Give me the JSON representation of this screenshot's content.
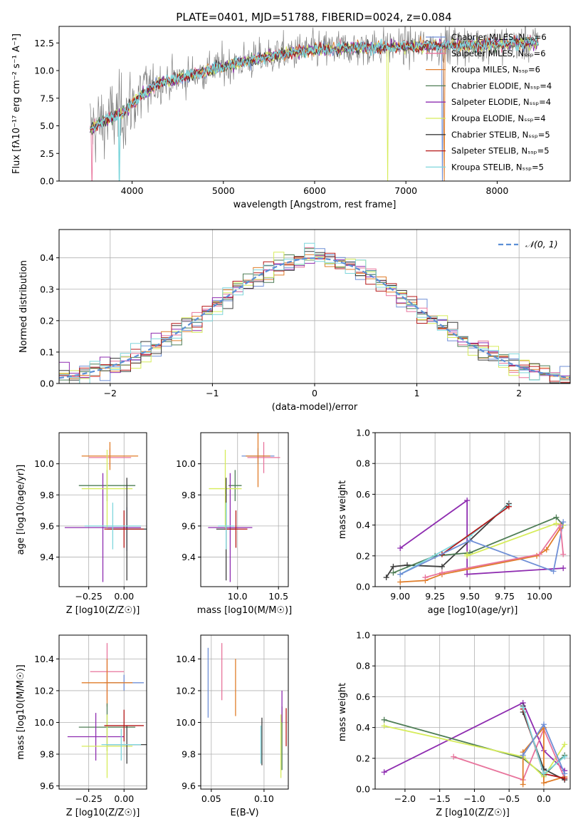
{
  "figure_title": "PLATE=0401, MJD=51788, FIBERID=0024, z=0.084",
  "colors": {
    "chabrier_miles": "#6f8fd6",
    "salpeter_miles": "#e8749c",
    "kroupa_miles": "#e07d2a",
    "chabrier_elodie": "#4e7d55",
    "salpeter_elodie": "#8e2cb0",
    "kroupa_elodie": "#d6ec5a",
    "chabrier_stelib": "#3d3d3d",
    "salpeter_stelib": "#b51818",
    "kroupa_stelib": "#7fd6dc",
    "data": "#808080",
    "normal": "#5b8fd6"
  },
  "chart_data": [
    {
      "id": "spectrum",
      "type": "line",
      "title": "PLATE=0401, MJD=51788, FIBERID=0024, z=0.084",
      "xlabel": "wavelength [Angstrom, rest frame]",
      "ylabel": "Flux [fλ10⁻¹⁷ erg cm⁻² s⁻¹ A⁻¹]",
      "xlim": [
        3200,
        8800
      ],
      "ylim": [
        0,
        14
      ],
      "xticks": [
        4000,
        5000,
        6000,
        7000,
        8000
      ],
      "yticks": [
        0.0,
        2.5,
        5.0,
        7.5,
        10.0,
        12.5
      ],
      "grid": false,
      "legend_position": "top-right",
      "legend": [
        "Chabrier MILES, N_SSP=6",
        "Salpeter MILES, N_SSP=6",
        "Kroupa MILES, N_SSP=6",
        "Chabrier ELODIE, N_SSP=4",
        "Salpeter ELODIE, N_SSP=4",
        "Kroupa ELODIE, N_SSP=4",
        "Chabrier STELIB, N_SSP=5",
        "Salpeter STELIB, N_SSP=5",
        "Kroupa STELIB, N_SSP=5"
      ],
      "continuum": {
        "x": [
          3550,
          3700,
          3900,
          4100,
          4300,
          4600,
          5000,
          5400,
          5800,
          6200,
          6600,
          7000,
          7400,
          7700,
          8000,
          8400
        ],
        "y": [
          4.8,
          5.4,
          6.2,
          7.8,
          8.9,
          9.5,
          10.4,
          11.1,
          11.7,
          12.0,
          12.1,
          12.2,
          12.3,
          12.3,
          12.4,
          12.5
        ]
      },
      "sharp_drops": [
        {
          "model": "kroupa_elodie",
          "x": 6800
        },
        {
          "model": "kroupa_miles",
          "x": 7420
        },
        {
          "model": "chabrier_miles",
          "x": 7400
        },
        {
          "model": "salpeter_miles",
          "x": 3560
        },
        {
          "model": "kroupa_stelib",
          "x": 3860
        }
      ]
    },
    {
      "id": "residuals",
      "type": "histogram",
      "xlabel": "(data-model)/error",
      "ylabel": "Normed distribution",
      "xlim": [
        -2.5,
        2.5
      ],
      "ylim": [
        0,
        0.49
      ],
      "xticks": [
        -2,
        -1,
        0,
        1,
        2
      ],
      "yticks": [
        0.0,
        0.1,
        0.2,
        0.3,
        0.4
      ],
      "grid": true,
      "legend_position": "top-right",
      "legend": [
        "𝒩(0, 1)"
      ],
      "bin_width": 0.1,
      "bin_start": -2.5,
      "reference_curve": "normal(0,1)"
    },
    {
      "id": "age_vs_Z",
      "type": "scatter",
      "xlabel": "Z [log10(Z/Z☉)]",
      "ylabel": "age  [log10(age/yr)]",
      "xlim": [
        -0.46,
        0.16
      ],
      "ylim": [
        9.21,
        10.2
      ],
      "xticks": [
        -0.25,
        0.0
      ],
      "yticks": [
        9.4,
        9.6,
        9.8,
        10.0
      ],
      "grid": true,
      "points": [
        {
          "model": "chabrier_miles",
          "x": 0.02,
          "xerr": 0.13,
          "y": 9.58,
          "yerr": 0.14
        },
        {
          "model": "salpeter_miles",
          "x": -0.1,
          "xerr": 0.15,
          "y": 10.04,
          "yerr": 0.06
        },
        {
          "model": "kroupa_miles",
          "x": -0.1,
          "xerr": 0.2,
          "y": 10.05,
          "yerr": 0.09
        },
        {
          "model": "chabrier_elodie",
          "x": -0.12,
          "xerr": 0.2,
          "y": 9.86,
          "yerr": 0.1
        },
        {
          "model": "salpeter_elodie",
          "x": -0.15,
          "xerr": 0.27,
          "y": 9.59,
          "yerr": 0.35
        },
        {
          "model": "kroupa_elodie",
          "x": -0.12,
          "xerr": 0.18,
          "y": 9.84,
          "yerr": 0.25
        },
        {
          "model": "chabrier_stelib",
          "x": 0.02,
          "xerr": 0.14,
          "y": 9.58,
          "yerr": 0.33
        },
        {
          "model": "salpeter_stelib",
          "x": 0.0,
          "xerr": 0.14,
          "y": 9.58,
          "yerr": 0.12
        },
        {
          "model": "kroupa_stelib",
          "x": -0.08,
          "xerr": 0.2,
          "y": 9.6,
          "yerr": 0.15
        }
      ]
    },
    {
      "id": "age_vs_mass",
      "type": "scatter",
      "xlabel": "mass [log10(M/M☉)]",
      "ylabel": "",
      "xlim": [
        9.55,
        10.62
      ],
      "ylim": [
        9.21,
        10.2
      ],
      "xticks": [
        9.0,
        10.0,
        10.5
      ],
      "xtick_labels": [
        "",
        "10.0",
        "10.5"
      ],
      "yticks": [
        9.4,
        9.6,
        9.8,
        10.0
      ],
      "grid": true,
      "points": [
        {
          "model": "chabrier_miles",
          "x": 10.25,
          "xerr": 0.2,
          "y": 10.05,
          "yerr": 0.05
        },
        {
          "model": "salpeter_miles",
          "x": 10.32,
          "xerr": 0.2,
          "y": 10.04,
          "yerr": 0.1
        },
        {
          "model": "kroupa_miles",
          "x": 10.25,
          "xerr": 0.15,
          "y": 10.05,
          "yerr": 0.2
        },
        {
          "model": "chabrier_elodie",
          "x": 9.97,
          "xerr": 0.08,
          "y": 9.86,
          "yerr": 0.1
        },
        {
          "model": "salpeter_elodie",
          "x": 9.91,
          "xerr": 0.27,
          "y": 9.59,
          "yerr": 0.35
        },
        {
          "model": "kroupa_elodie",
          "x": 9.85,
          "xerr": 0.2,
          "y": 9.84,
          "yerr": 0.25
        },
        {
          "model": "chabrier_stelib",
          "x": 9.86,
          "xerr": 0.12,
          "y": 9.58,
          "yerr": 0.33
        },
        {
          "model": "salpeter_stelib",
          "x": 9.98,
          "xerr": 0.14,
          "y": 9.58,
          "yerr": 0.12
        },
        {
          "model": "kroupa_stelib",
          "x": 9.86,
          "xerr": 0.1,
          "y": 9.6,
          "yerr": 0.15
        }
      ]
    },
    {
      "id": "mass_weight_vs_age",
      "type": "line",
      "xlabel": "age  [log10(age/yr)]",
      "ylabel": "mass weight",
      "xlim": [
        8.82,
        10.22
      ],
      "ylim": [
        0,
        1
      ],
      "xticks": [
        9.0,
        9.25,
        9.5,
        9.75,
        10.0
      ],
      "yticks": [
        0.0,
        0.2,
        0.4,
        0.6,
        0.8,
        1.0
      ],
      "grid": true,
      "series": [
        {
          "model": "salpeter_elodie",
          "x": [
            9.0,
            9.48,
            9.48,
            10.17
          ],
          "y": [
            0.25,
            0.56,
            0.08,
            0.12
          ]
        },
        {
          "model": "chabrier_stelib",
          "x": [
            8.9,
            8.95,
            9.05,
            9.3,
            9.78
          ],
          "y": [
            0.06,
            0.13,
            0.14,
            0.13,
            0.54
          ]
        },
        {
          "model": "chabrier_elodie",
          "x": [
            8.95,
            9.25,
            9.5,
            10.12,
            10.17
          ],
          "y": [
            0.09,
            0.2,
            0.22,
            0.45,
            0.4
          ]
        },
        {
          "model": "kroupa_elodie",
          "x": [
            9.48,
            9.48,
            10.12,
            10.17
          ],
          "y": [
            0.21,
            0.2,
            0.41,
            0.4
          ]
        },
        {
          "model": "kroupa_stelib",
          "x": [
            9.0,
            9.5,
            9.78
          ],
          "y": [
            0.08,
            0.33,
            0.53
          ]
        },
        {
          "model": "salpeter_stelib",
          "x": [
            9.3,
            9.78
          ],
          "y": [
            0.21,
            0.52
          ]
        },
        {
          "model": "chabrier_miles",
          "x": [
            9.0,
            9.5,
            10.1,
            10.17
          ],
          "y": [
            0.08,
            0.3,
            0.1,
            0.42
          ]
        },
        {
          "model": "kroupa_miles",
          "x": [
            9.0,
            9.18,
            9.3,
            9.98,
            10.05,
            10.15
          ],
          "y": [
            0.03,
            0.04,
            0.08,
            0.2,
            0.24,
            0.38
          ]
        },
        {
          "model": "salpeter_miles",
          "x": [
            9.18,
            9.3,
            10.0,
            10.15,
            10.17
          ],
          "y": [
            0.06,
            0.09,
            0.21,
            0.4,
            0.21
          ]
        }
      ]
    },
    {
      "id": "mass_vs_Z",
      "type": "scatter",
      "xlabel": "Z [log10(Z/Z☉)]",
      "ylabel": "mass [log10(M/M☉)]",
      "xlim": [
        -0.46,
        0.16
      ],
      "ylim": [
        9.58,
        10.55
      ],
      "xticks": [
        -0.25,
        0.0
      ],
      "yticks": [
        9.6,
        9.8,
        10.0,
        10.2,
        10.4
      ],
      "grid": true,
      "points": [
        {
          "model": "chabrier_miles",
          "x": 0.0,
          "xerr": 0.14,
          "y": 10.25,
          "yerr": 0.05
        },
        {
          "model": "salpeter_miles",
          "x": -0.12,
          "xerr": 0.12,
          "y": 10.32,
          "yerr": 0.18
        },
        {
          "model": "kroupa_miles",
          "x": -0.12,
          "xerr": 0.18,
          "y": 10.25,
          "yerr": 0.15
        },
        {
          "model": "chabrier_elodie",
          "x": -0.12,
          "xerr": 0.2,
          "y": 9.97,
          "yerr": 0.15
        },
        {
          "model": "salpeter_elodie",
          "x": -0.2,
          "xerr": 0.2,
          "y": 9.91,
          "yerr": 0.15
        },
        {
          "model": "kroupa_elodie",
          "x": -0.12,
          "xerr": 0.18,
          "y": 9.85,
          "yerr": 0.2
        },
        {
          "model": "chabrier_stelib",
          "x": 0.02,
          "xerr": 0.14,
          "y": 9.86,
          "yerr": 0.12
        },
        {
          "model": "salpeter_stelib",
          "x": 0.0,
          "xerr": 0.14,
          "y": 9.98,
          "yerr": 0.1
        },
        {
          "model": "kroupa_stelib",
          "x": -0.02,
          "xerr": 0.14,
          "y": 9.86,
          "yerr": 0.1
        }
      ]
    },
    {
      "id": "mass_vs_ebv",
      "type": "scatter",
      "xlabel": "E(B-V)",
      "ylabel": "",
      "xlim": [
        0.04,
        0.123
      ],
      "ylim": [
        9.58,
        10.55
      ],
      "xticks": [
        0.05,
        0.1
      ],
      "yticks": [
        9.6,
        9.8,
        10.0,
        10.2,
        10.4
      ],
      "grid": true,
      "points": [
        {
          "model": "chabrier_miles",
          "x": 0.047,
          "y": 10.25,
          "yerr": 0.22
        },
        {
          "model": "salpeter_miles",
          "x": 0.06,
          "y": 10.32,
          "yerr": 0.18
        },
        {
          "model": "kroupa_miles",
          "x": 0.073,
          "y": 10.22,
          "yerr": 0.18
        },
        {
          "model": "chabrier_stelib",
          "x": 0.098,
          "y": 9.88,
          "yerr": 0.15
        },
        {
          "model": "kroupa_stelib",
          "x": 0.097,
          "y": 9.86,
          "yerr": 0.12
        },
        {
          "model": "kroupa_elodie",
          "x": 0.116,
          "y": 9.85,
          "yerr": 0.2
        },
        {
          "model": "chabrier_elodie",
          "x": 0.117,
          "y": 9.9,
          "yerr": 0.2
        },
        {
          "model": "salpeter_elodie",
          "x": 0.117,
          "y": 10.1,
          "yerr": 0.1
        },
        {
          "model": "salpeter_stelib",
          "x": 0.121,
          "y": 9.97,
          "yerr": 0.12
        }
      ]
    },
    {
      "id": "mass_weight_vs_Z",
      "type": "line",
      "xlabel": "Z [log10(Z/Z☉)]",
      "ylabel": "mass weight",
      "xlim": [
        -2.43,
        0.38
      ],
      "ylim": [
        0,
        1
      ],
      "xticks": [
        -2.0,
        -1.5,
        -1.0,
        -0.5,
        0.0
      ],
      "yticks": [
        0.0,
        0.2,
        0.4,
        0.6,
        0.8,
        1.0
      ],
      "grid": true,
      "series": [
        {
          "model": "salpeter_elodie",
          "x": [
            -2.3,
            -0.3,
            0.0,
            0.3
          ],
          "y": [
            0.11,
            0.56,
            0.25,
            0.12
          ]
        },
        {
          "model": "chabrier_elodie",
          "x": [
            -2.3,
            -0.3,
            0.0,
            0.3
          ],
          "y": [
            0.45,
            0.2,
            0.09,
            0.22
          ]
        },
        {
          "model": "kroupa_elodie",
          "x": [
            -2.3,
            -0.3,
            0.0,
            0.3
          ],
          "y": [
            0.41,
            0.21,
            0.08,
            0.29
          ]
        },
        {
          "model": "salpeter_miles",
          "x": [
            -1.3,
            -0.3,
            0.0,
            0.3
          ],
          "y": [
            0.21,
            0.06,
            0.39,
            0.07
          ]
        },
        {
          "model": "kroupa_miles",
          "x": [
            -0.3,
            -0.3,
            0.0,
            0.0,
            0.3
          ],
          "y": [
            0.03,
            0.24,
            0.4,
            0.04,
            0.08
          ]
        },
        {
          "model": "chabrier_stelib",
          "x": [
            -0.3,
            -0.3,
            0.0,
            0.3
          ],
          "y": [
            0.54,
            0.5,
            0.13,
            0.06
          ]
        },
        {
          "model": "salpeter_stelib",
          "x": [
            -0.3,
            0.0,
            0.3
          ],
          "y": [
            0.52,
            0.1,
            0.07
          ]
        },
        {
          "model": "kroupa_stelib",
          "x": [
            -0.3,
            0.0,
            0.3
          ],
          "y": [
            0.53,
            0.1,
            0.21
          ]
        },
        {
          "model": "chabrier_miles",
          "x": [
            -0.3,
            0.0,
            0.3
          ],
          "y": [
            0.22,
            0.42,
            0.1
          ]
        }
      ]
    }
  ]
}
